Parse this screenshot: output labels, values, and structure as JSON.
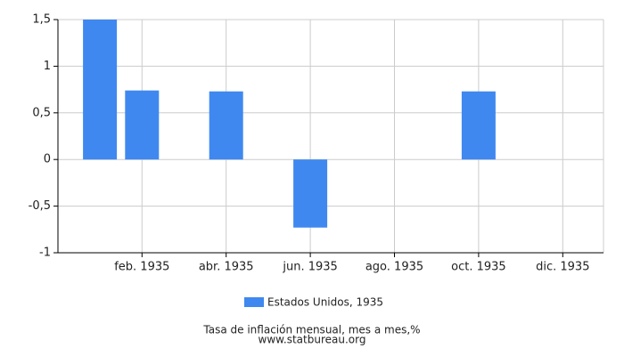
{
  "chart_data": {
    "type": "bar",
    "categories": [
      null,
      "feb. 1935",
      null,
      "abr. 1935",
      null,
      "jun. 1935",
      null,
      "ago. 1935",
      null,
      "oct. 1935",
      null,
      "dic. 1935"
    ],
    "series": [
      {
        "name": "Estados Unidos, 1935",
        "color": "#3f88f0",
        "values": [
          1.5,
          0.74,
          0,
          0.73,
          0,
          -0.73,
          0,
          0,
          0,
          0.73,
          0,
          0
        ]
      }
    ],
    "ylim": [
      -1,
      1.5
    ],
    "yticks": [
      {
        "value": -1,
        "label": "-1"
      },
      {
        "value": -0.5,
        "label": "-0,5"
      },
      0,
      {
        "value": 0.5,
        "label": "0,5"
      },
      1,
      {
        "value": 1.5,
        "label": "1,5"
      }
    ],
    "grid": true,
    "legend": "bottom",
    "caption": "Tasa de inflación mensual, mes a mes,%",
    "source": "www.statbureau.org"
  }
}
